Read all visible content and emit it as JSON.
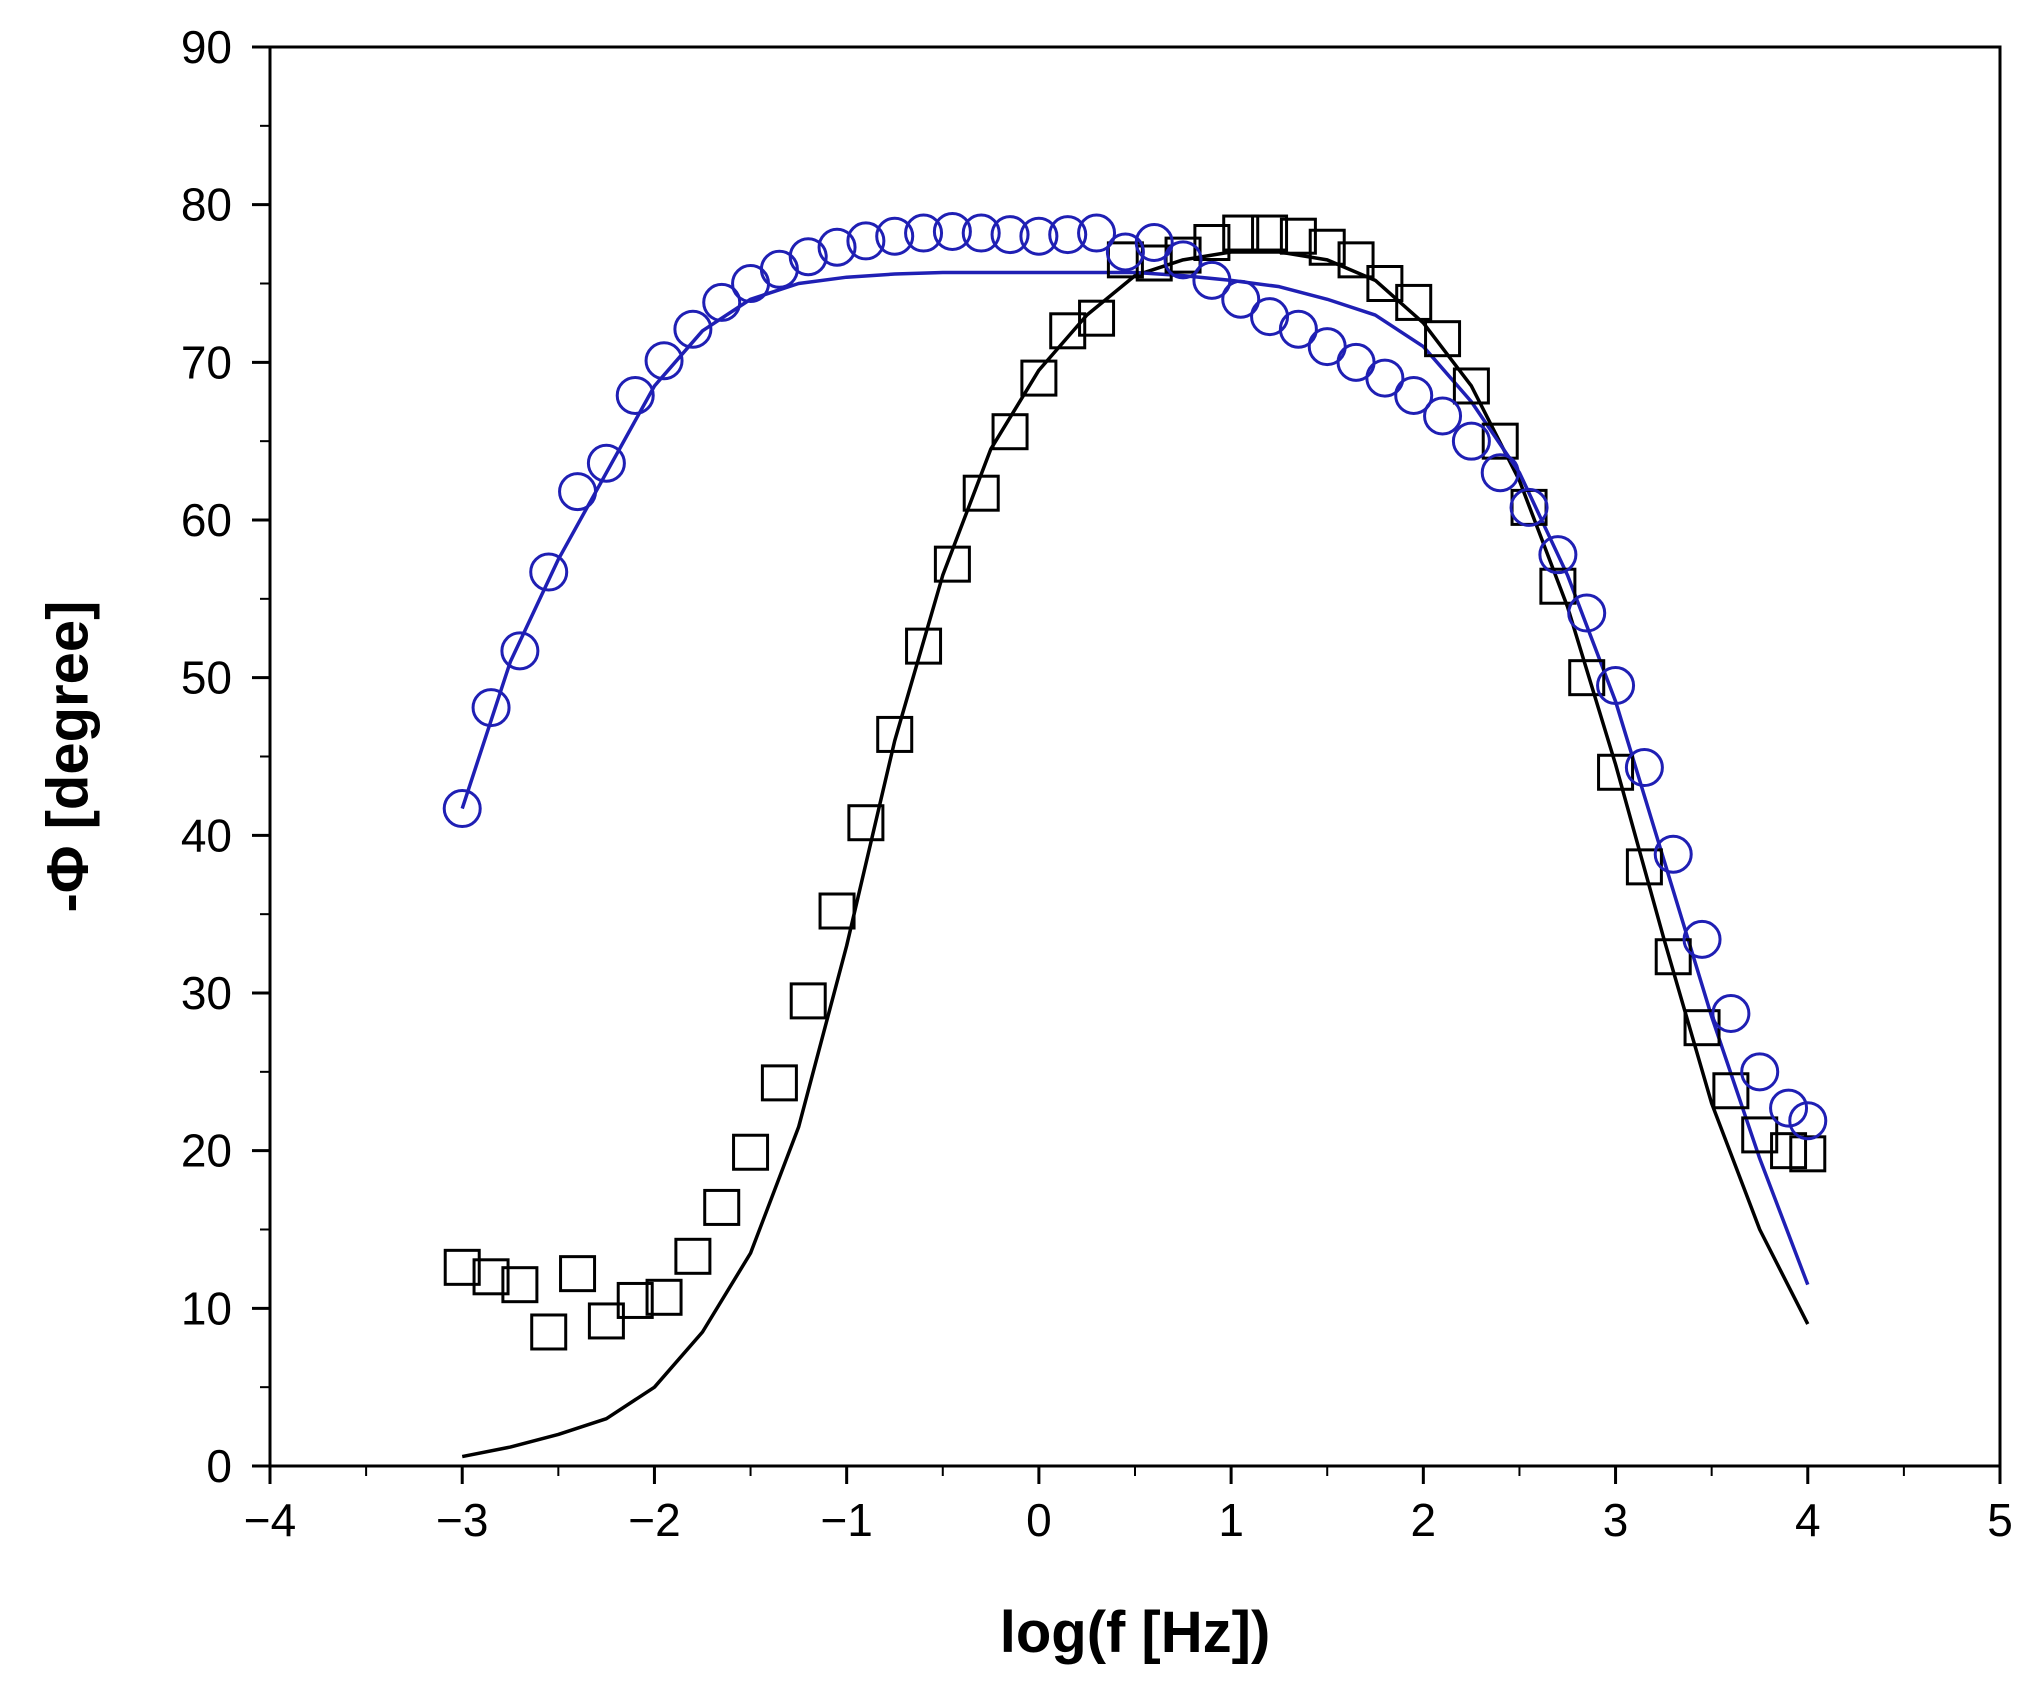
{
  "chart_data": {
    "type": "scatter",
    "title": "",
    "xlabel": "log(f [Hz])",
    "ylabel": "-Φ [degree]",
    "xlim": [
      -4,
      5
    ],
    "ylim": [
      0,
      90
    ],
    "x_ticks": [
      -4,
      -3,
      -2,
      -1,
      0,
      1,
      2,
      3,
      4,
      5
    ],
    "x_tick_labels": [
      "−4",
      "−3",
      "−2",
      "−1",
      "0",
      "1",
      "2",
      "3",
      "4",
      "5"
    ],
    "y_ticks": [
      0,
      10,
      20,
      30,
      40,
      50,
      60,
      70,
      80,
      90
    ],
    "y_tick_labels": [
      "0",
      "10",
      "20",
      "30",
      "40",
      "50",
      "60",
      "70",
      "80",
      "90"
    ],
    "grid": false,
    "legend": "none",
    "colors": {
      "black": "#000000",
      "blue": "#1f1fb4"
    },
    "series": [
      {
        "name": "squares-measured",
        "kind": "marker",
        "marker": "square",
        "color": "#000000",
        "x": [
          -3.0,
          -2.85,
          -2.7,
          -2.55,
          -2.4,
          -2.25,
          -2.1,
          -1.95,
          -1.8,
          -1.65,
          -1.5,
          -1.35,
          -1.2,
          -1.05,
          -0.9,
          -0.75,
          -0.6,
          -0.45,
          -0.3,
          -0.15,
          0.0,
          0.15,
          0.3,
          0.45,
          0.6,
          0.75,
          0.9,
          1.05,
          1.2,
          1.35,
          1.5,
          1.65,
          1.8,
          1.95,
          2.1,
          2.25,
          2.4,
          2.55,
          2.7,
          2.85,
          3.0,
          3.15,
          3.3,
          3.45,
          3.6,
          3.75,
          3.9,
          4.0
        ],
        "y": [
          12.6,
          12.0,
          11.5,
          8.5,
          12.2,
          9.2,
          10.5,
          10.7,
          13.3,
          16.4,
          19.9,
          24.3,
          29.5,
          35.2,
          40.8,
          46.4,
          52.0,
          57.2,
          61.7,
          65.6,
          69.0,
          72.0,
          72.8,
          76.5,
          76.3,
          76.8,
          77.6,
          78.2,
          78.2,
          78.0,
          77.3,
          76.5,
          75.0,
          73.8,
          71.5,
          68.5,
          65.0,
          60.8,
          55.8,
          50.0,
          44.0,
          38.0,
          32.3,
          27.8,
          23.8,
          21.0,
          20.0,
          19.8
        ]
      },
      {
        "name": "circles-measured",
        "kind": "marker",
        "marker": "circle",
        "color": "#1f1fb4",
        "x": [
          -3.0,
          -2.85,
          -2.7,
          -2.55,
          -2.4,
          -2.25,
          -2.1,
          -1.95,
          -1.8,
          -1.65,
          -1.5,
          -1.35,
          -1.2,
          -1.05,
          -0.9,
          -0.75,
          -0.6,
          -0.45,
          -0.3,
          -0.15,
          0.0,
          0.15,
          0.3,
          0.45,
          0.6,
          0.75,
          0.9,
          1.05,
          1.2,
          1.35,
          1.5,
          1.65,
          1.8,
          1.95,
          2.1,
          2.25,
          2.4,
          2.55,
          2.7,
          2.85,
          3.0,
          3.15,
          3.3,
          3.45,
          3.6,
          3.75,
          3.9,
          4.0
        ],
        "y": [
          41.7,
          48.1,
          51.7,
          56.7,
          61.8,
          63.6,
          67.9,
          70.1,
          72.1,
          73.8,
          75.0,
          75.9,
          76.7,
          77.3,
          77.7,
          78.0,
          78.2,
          78.3,
          78.2,
          78.1,
          78.0,
          78.1,
          78.2,
          77.0,
          77.6,
          76.5,
          75.2,
          74.0,
          72.9,
          72.1,
          71.0,
          70.0,
          69.0,
          67.9,
          66.6,
          65.0,
          63.0,
          60.8,
          57.8,
          54.1,
          49.5,
          44.3,
          38.8,
          33.4,
          28.7,
          25.0,
          22.7,
          21.9
        ]
      },
      {
        "name": "black-fit",
        "kind": "line",
        "color": "#000000",
        "x": [
          -3.0,
          -2.75,
          -2.5,
          -2.25,
          -2.0,
          -1.75,
          -1.5,
          -1.25,
          -1.0,
          -0.75,
          -0.5,
          -0.25,
          0.0,
          0.25,
          0.5,
          0.75,
          1.0,
          1.25,
          1.5,
          1.75,
          2.0,
          2.25,
          2.5,
          2.75,
          3.0,
          3.25,
          3.5,
          3.75,
          4.0
        ],
        "y": [
          0.6,
          1.2,
          2.0,
          3.0,
          5.0,
          8.5,
          13.5,
          21.5,
          33.0,
          46.0,
          56.5,
          64.5,
          69.5,
          73.0,
          75.5,
          76.5,
          77.0,
          77.0,
          76.5,
          75.2,
          72.5,
          68.5,
          62.5,
          54.5,
          44.5,
          33.5,
          23.0,
          15.0,
          9.0
        ]
      },
      {
        "name": "blue-fit",
        "kind": "line",
        "color": "#1f1fb4",
        "x": [
          -3.0,
          -2.75,
          -2.5,
          -2.25,
          -2.0,
          -1.75,
          -1.5,
          -1.25,
          -1.0,
          -0.75,
          -0.5,
          -0.25,
          0.0,
          0.25,
          0.5,
          0.75,
          1.0,
          1.25,
          1.5,
          1.75,
          2.0,
          2.25,
          2.5,
          2.75,
          3.0,
          3.25,
          3.5,
          3.75,
          4.0
        ],
        "y": [
          41.7,
          51.0,
          57.5,
          63.0,
          68.5,
          72.0,
          74.0,
          75.0,
          75.4,
          75.6,
          75.7,
          75.7,
          75.7,
          75.7,
          75.7,
          75.5,
          75.2,
          74.8,
          74.0,
          73.0,
          71.0,
          67.5,
          63.0,
          56.5,
          48.5,
          38.5,
          28.5,
          19.5,
          11.5
        ]
      }
    ]
  }
}
